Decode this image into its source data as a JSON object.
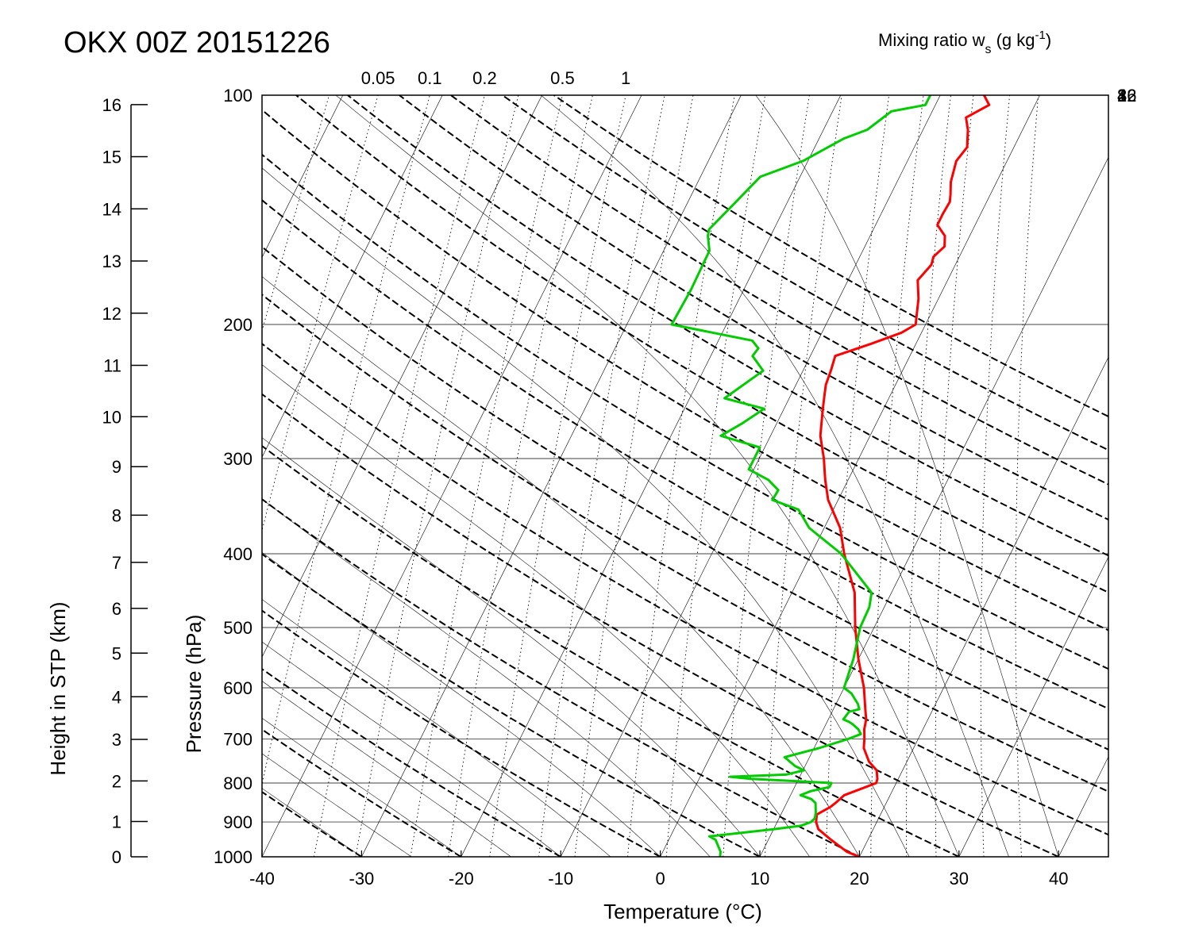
{
  "title": "OKX 00Z 20151226",
  "colors": {
    "temperature": "#ff0000",
    "dewpoint": "#00cc00",
    "grid": "#000000"
  },
  "chart_data": {
    "type": "line",
    "subtype": "skew-T log-P diagram",
    "xlabel": "Temperature (°C)",
    "ylabel": "Pressure (hPa)",
    "y2label": "Height in STP (km)",
    "xlim": [
      -40,
      45
    ],
    "ylim": [
      1000,
      100
    ],
    "y_scale": "log",
    "grid": true,
    "x_ticks": [
      "-40",
      "-30",
      "-20",
      "-10",
      "0",
      "10",
      "20",
      "30",
      "40"
    ],
    "y_ticks": [
      "100",
      "200",
      "300",
      "400",
      "500",
      "600",
      "700",
      "800",
      "900",
      "1000"
    ],
    "height_ticks": [
      "0",
      "1",
      "2",
      "3",
      "4",
      "5",
      "6",
      "7",
      "8",
      "9",
      "10",
      "11",
      "12",
      "13",
      "14",
      "15",
      "16"
    ],
    "mixing_ratio": {
      "label": "Mixing ratio w",
      "label_sub": "s",
      "label_tail": " (g kg",
      "label_sup": "-1",
      "label_end": ")",
      "top_labels": [
        "0.05",
        "0.1",
        "0.2",
        "0.5",
        "1"
      ],
      "right_labels": [
        "2",
        "4",
        "8",
        "16",
        "32"
      ]
    },
    "series": [
      {
        "name": "",
        "role": "temperature",
        "points": [
          [
            1000,
            20.0
          ],
          [
            985,
            18.5
          ],
          [
            950,
            16.3
          ],
          [
            920,
            14.5
          ],
          [
            900,
            13.9
          ],
          [
            880,
            13.6
          ],
          [
            870,
            14.1
          ],
          [
            860,
            14.6
          ],
          [
            850,
            14.9
          ],
          [
            830,
            15.4
          ],
          [
            815,
            16.7
          ],
          [
            800,
            18.0
          ],
          [
            790,
            17.9
          ],
          [
            770,
            17.4
          ],
          [
            750,
            16.2
          ],
          [
            720,
            15.0
          ],
          [
            700,
            14.6
          ],
          [
            680,
            14.1
          ],
          [
            660,
            13.8
          ],
          [
            640,
            13.2
          ],
          [
            600,
            12.0
          ],
          [
            550,
            10.0
          ],
          [
            500,
            8.1
          ],
          [
            450,
            6.3
          ],
          [
            400,
            3.3
          ],
          [
            370,
            1.6
          ],
          [
            340,
            -1.0
          ],
          [
            320,
            -2.3
          ],
          [
            300,
            -3.5
          ],
          [
            280,
            -5.0
          ],
          [
            260,
            -6.0
          ],
          [
            250,
            -6.5
          ],
          [
            240,
            -7.0
          ],
          [
            230,
            -7.2
          ],
          [
            220,
            -7.5
          ],
          [
            212,
            -4.5
          ],
          [
            205,
            -2.0
          ],
          [
            200,
            -1.0
          ],
          [
            185,
            -2.0
          ],
          [
            175,
            -3.0
          ],
          [
            167,
            -2.4
          ],
          [
            163,
            -2.6
          ],
          [
            158,
            -2.0
          ],
          [
            153,
            -2.5
          ],
          [
            148,
            -3.8
          ],
          [
            143,
            -3.8
          ],
          [
            138,
            -3.7
          ],
          [
            135,
            -4.0
          ],
          [
            130,
            -4.6
          ],
          [
            122,
            -5.1
          ],
          [
            117,
            -4.7
          ],
          [
            111,
            -5.5
          ],
          [
            107,
            -6.3
          ],
          [
            103,
            -4.6
          ],
          [
            100,
            -5.6
          ]
        ]
      },
      {
        "name": "",
        "role": "dewpoint",
        "points": [
          [
            1000,
            6.0
          ],
          [
            985,
            5.8
          ],
          [
            950,
            4.7
          ],
          [
            940,
            3.9
          ],
          [
            920,
            10.0
          ],
          [
            910,
            12.6
          ],
          [
            900,
            13.4
          ],
          [
            890,
            13.6
          ],
          [
            875,
            13.4
          ],
          [
            850,
            12.9
          ],
          [
            840,
            12.3
          ],
          [
            830,
            11.0
          ],
          [
            820,
            11.8
          ],
          [
            810,
            13.5
          ],
          [
            800,
            13.5
          ],
          [
            790,
            5.2
          ],
          [
            785,
            3.0
          ],
          [
            780,
            8.5
          ],
          [
            770,
            10.1
          ],
          [
            760,
            9.0
          ],
          [
            740,
            7.5
          ],
          [
            720,
            10.5
          ],
          [
            700,
            13.0
          ],
          [
            690,
            14.0
          ],
          [
            680,
            13.5
          ],
          [
            670,
            12.7
          ],
          [
            665,
            12.2
          ],
          [
            660,
            11.5
          ],
          [
            645,
            11.7
          ],
          [
            640,
            12.6
          ],
          [
            630,
            12.2
          ],
          [
            610,
            11.0
          ],
          [
            600,
            10.0
          ],
          [
            550,
            9.5
          ],
          [
            500,
            8.6
          ],
          [
            470,
            8.5
          ],
          [
            450,
            8.0
          ],
          [
            400,
            3.0
          ],
          [
            370,
            -1.5
          ],
          [
            350,
            -3.5
          ],
          [
            340,
            -6.6
          ],
          [
            330,
            -6.5
          ],
          [
            320,
            -8.0
          ],
          [
            310,
            -10.5
          ],
          [
            290,
            -10.5
          ],
          [
            280,
            -15.0
          ],
          [
            270,
            -13.5
          ],
          [
            258,
            -12.0
          ],
          [
            250,
            -16.5
          ],
          [
            230,
            -14.0
          ],
          [
            220,
            -15.8
          ],
          [
            215,
            -15.6
          ],
          [
            210,
            -16.6
          ],
          [
            200,
            -25.5
          ],
          [
            180,
            -25.3
          ],
          [
            160,
            -25.4
          ],
          [
            153,
            -26.3
          ],
          [
            150,
            -26.5
          ],
          [
            140,
            -25.4
          ],
          [
            128,
            -24.0
          ],
          [
            122,
            -20.5
          ],
          [
            114,
            -17.5
          ],
          [
            111,
            -15.6
          ],
          [
            105,
            -14.1
          ],
          [
            103,
            -11.0
          ],
          [
            100,
            -11.0
          ]
        ]
      }
    ]
  }
}
